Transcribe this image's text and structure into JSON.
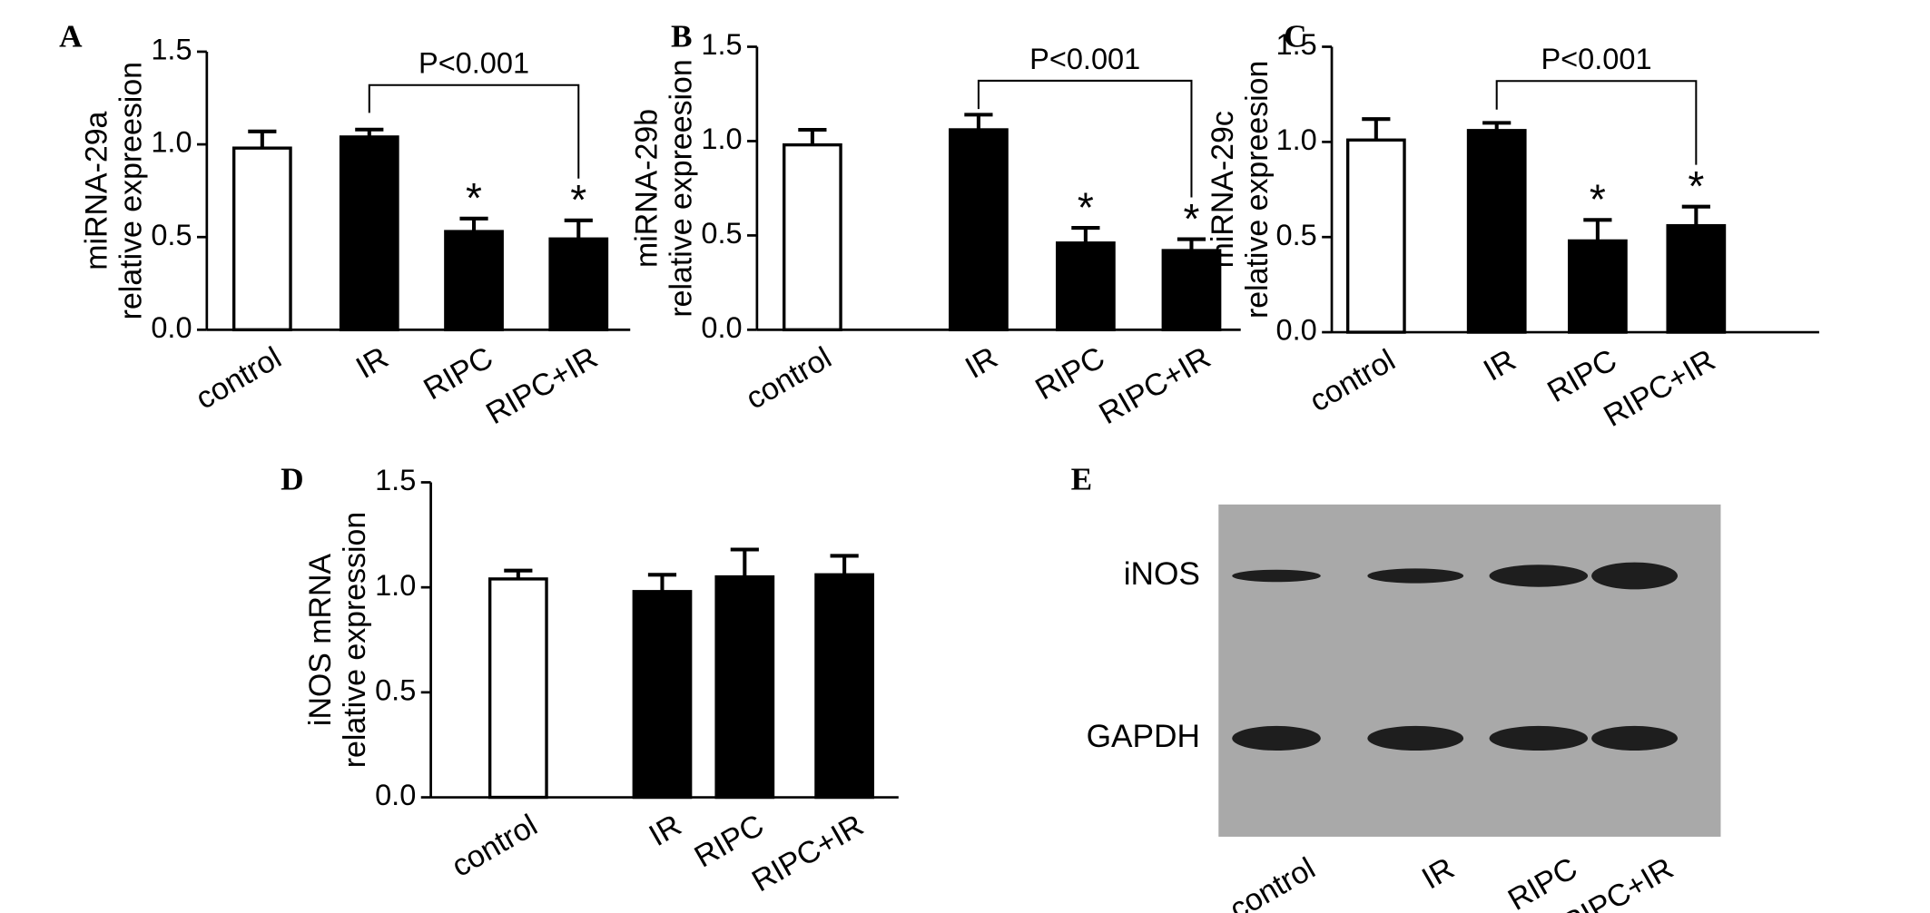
{
  "chart_data": [
    {
      "type": "bar",
      "label": "A",
      "ylabel": [
        "miRNA-29a",
        "relative expreesion"
      ],
      "categories": [
        "control",
        "IR",
        "RIPC",
        "RIPC+IR"
      ],
      "values": [
        0.98,
        1.04,
        0.53,
        0.49
      ],
      "errors": [
        0.09,
        0.04,
        0.07,
        0.1
      ],
      "colors": [
        "#ffffff",
        "#000000",
        "#000000",
        "#000000"
      ],
      "significance": [
        null,
        null,
        "*",
        "*"
      ],
      "comparison": {
        "text": "P<0.001",
        "from": "IR",
        "to": "RIPC+IR"
      },
      "ylim": [
        0,
        1.5
      ],
      "yticks": [
        {
          "value": 0,
          "label": "0.0"
        },
        0.5,
        {
          "value": 1,
          "label": "1.0"
        },
        1.5
      ]
    },
    {
      "type": "bar",
      "label": "B",
      "ylabel": [
        "miRNA-29b",
        "relative expreesion"
      ],
      "categories": [
        "control",
        "IR",
        "RIPC",
        "RIPC+IR"
      ],
      "values": [
        0.98,
        1.06,
        0.46,
        0.42
      ],
      "errors": [
        0.08,
        0.08,
        0.08,
        0.06
      ],
      "colors": [
        "#ffffff",
        "#000000",
        "#000000",
        "#000000"
      ],
      "significance": [
        null,
        null,
        "*",
        "*"
      ],
      "comparison": {
        "text": "P<0.001",
        "from": "IR",
        "to": "RIPC+IR"
      },
      "ylim": [
        0,
        1.5
      ],
      "yticks": [
        {
          "value": 0,
          "label": "0.0"
        },
        0.5,
        {
          "value": 1,
          "label": "1.0"
        },
        1.5
      ]
    },
    {
      "type": "bar",
      "label": "C",
      "ylabel": [
        "miRNA-29c",
        "relative expreesion"
      ],
      "categories": [
        "control",
        "IR",
        "RIPC",
        "RIPC+IR"
      ],
      "values": [
        1.01,
        1.06,
        0.48,
        0.56
      ],
      "errors": [
        0.11,
        0.04,
        0.11,
        0.1
      ],
      "colors": [
        "#ffffff",
        "#000000",
        "#000000",
        "#000000"
      ],
      "significance": [
        null,
        null,
        "*",
        "*"
      ],
      "comparison": {
        "text": "P<0.001",
        "from": "IR",
        "to": "RIPC+IR"
      },
      "ylim": [
        0,
        1.5
      ],
      "yticks": [
        {
          "value": 0,
          "label": "0.0"
        },
        0.5,
        {
          "value": 1,
          "label": "1.0"
        },
        1.5
      ]
    },
    {
      "type": "bar",
      "label": "D",
      "ylabel": [
        "iNOS mRNA",
        "relative expression"
      ],
      "categories": [
        "control",
        "IR",
        "RIPC",
        "RIPC+IR"
      ],
      "values": [
        1.04,
        0.98,
        1.05,
        1.06
      ],
      "errors": [
        0.04,
        0.08,
        0.13,
        0.09
      ],
      "colors": [
        "#ffffff",
        "#000000",
        "#000000",
        "#000000"
      ],
      "ylim": [
        0,
        1.5
      ],
      "yticks": [
        {
          "value": 0,
          "label": "0.0"
        },
        0.5,
        {
          "value": 1,
          "label": "1.0"
        },
        1.5
      ]
    },
    {
      "type": "blot",
      "label": "E",
      "rows": [
        "iNOS",
        "GAPDH"
      ],
      "categories": [
        "control",
        "IR",
        "RIPC",
        "RIPC+IR"
      ]
    }
  ]
}
